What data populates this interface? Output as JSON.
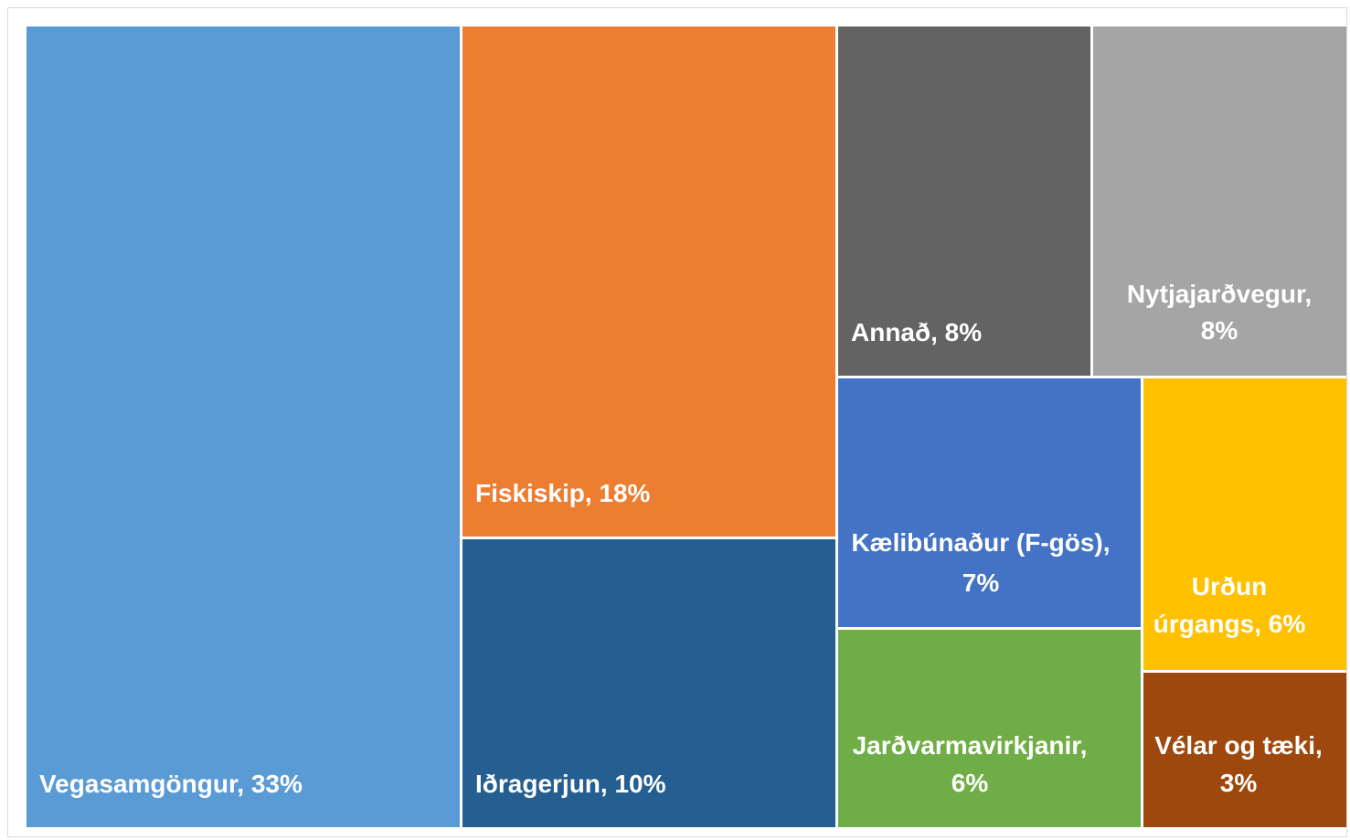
{
  "chart_data": {
    "type": "treemap",
    "items": [
      {
        "label": "Vegasamgöngur, 33%",
        "name": "Vegasamgöngur",
        "value": 33,
        "color": "#5b9bd5",
        "text_color": "#ffffff"
      },
      {
        "label": "Fiskiskip, 18%",
        "name": "Fiskiskip",
        "value": 18,
        "color": "#ed7d31",
        "text_color": "#ffffff"
      },
      {
        "label": "Iðragerjun, 10%",
        "name": "Iðragerjun",
        "value": 10,
        "color": "#255e91",
        "text_color": "#ffffff"
      },
      {
        "label": "Annað, 8%",
        "name": "Annað",
        "value": 8,
        "color": "#636363",
        "text_color": "#ffffff"
      },
      {
        "label": "Nytjajarðvegur, 8%",
        "name": "Nytjajarðvegur",
        "value": 8,
        "color": "#a5a5a5",
        "text_color": "#ffffff"
      },
      {
        "label": "Kælibúnaður (F-gös), 7%",
        "name": "Kælibúnaður (F-gös)",
        "value": 7,
        "color": "#4472c4",
        "text_color": "#ffffff"
      },
      {
        "label": "Urðun úrgangs, 6%",
        "name": "Urðun úrgangs",
        "value": 6,
        "color": "#ffc000",
        "text_color": "#ffffff"
      },
      {
        "label": "Jarðvarmavirkjanir, 6%",
        "name": "Jarðvarmavirkjanir",
        "value": 6,
        "color": "#70ad47",
        "text_color": "#ffffff"
      },
      {
        "label": "Vélar og tæki, 3%",
        "name": "Vélar og tæki",
        "value": 3,
        "color": "#9e480e",
        "text_color": "#ffffff"
      }
    ]
  }
}
